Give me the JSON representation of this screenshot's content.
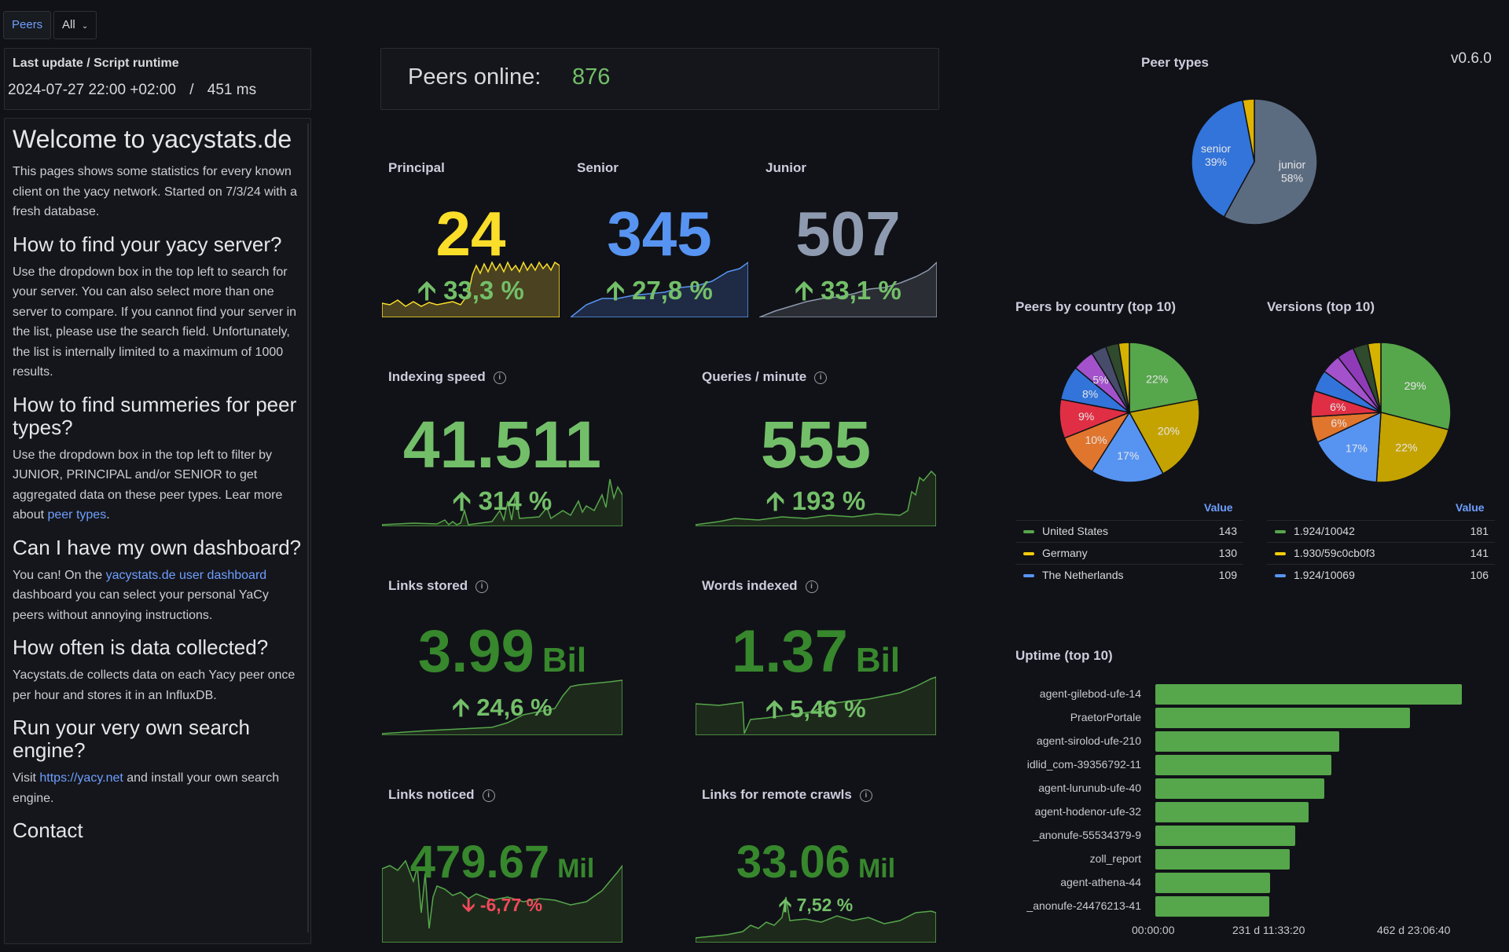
{
  "topbar": {
    "peers_label": "Peers",
    "all_label": "All",
    "version": "v0.6.0"
  },
  "update": {
    "title": "Last update / Script runtime",
    "datetime": "2024-07-27 22:00 +02:00",
    "sep": "/",
    "runtime": "451 ms"
  },
  "welcome": {
    "title": "Welcome to yacystats.de",
    "intro": "This pages shows some statistics for every known client on the yacy network. Started on 7/3/24 with a fresh database.",
    "h_find_server": "How to find your yacy server?",
    "p_find_server": "Use the dropdown box in the top left to search for your server. You can also select more than one server to compare. If you cannot find your server in the list, please use the search field. Unfortunately, the list is internally limited to a maximum of 1000 results.",
    "h_summaries": "How to find summeries for peer types?",
    "p_summaries_pre": "Use the dropdown box in the top left to filter by JUNIOR, PRINCIPAL and/or SENIOR to get aggregated data on these peer types. Lear more about ",
    "p_summaries_link": "peer types",
    "p_summaries_post": ".",
    "h_own_dash": "Can I have my own dashboard?",
    "p_own_dash_pre": "You can! On the ",
    "p_own_dash_link": "yacystats.de user dashboard",
    "p_own_dash_post": " dashboard you can select your personal YaCy peers without annoying instructions.",
    "h_collected": "How often is data collected?",
    "p_collected": "Yacystats.de collects data on each Yacy peer once per hour and stores it in an InfluxDB.",
    "h_search_engine": "Run your very own search engine?",
    "p_search_pre": "Visit ",
    "p_search_link": "https://yacy.net",
    "p_search_post": " and install your own search engine.",
    "h_contact": "Contact"
  },
  "peers_online": {
    "label": "Peers online:",
    "value": "876"
  },
  "types": {
    "principal": {
      "title": "Principal",
      "value": "24",
      "delta": "33,3 %",
      "color": "#fade2a"
    },
    "senior": {
      "title": "Senior",
      "value": "345",
      "delta": "27,8 %",
      "color": "#5794f2"
    },
    "junior": {
      "title": "Junior",
      "value": "507",
      "delta": "33,1 %",
      "color": "#8e9aaf"
    }
  },
  "stats": {
    "indexing": {
      "title": "Indexing speed",
      "value": "41.511",
      "unit": "",
      "delta": "314 %",
      "dir": "up"
    },
    "queries": {
      "title": "Queries / minute",
      "value": "555",
      "unit": "",
      "delta": "193 %",
      "dir": "up"
    },
    "links_stored": {
      "title": "Links stored",
      "value": "3.99",
      "unit": "Bil",
      "delta": "24,6 %",
      "dir": "up"
    },
    "words_indexed": {
      "title": "Words indexed",
      "value": "1.37",
      "unit": "Bil",
      "delta": "5,46 %",
      "dir": "up"
    },
    "links_noticed": {
      "title": "Links noticed",
      "value": "479.67",
      "unit": "Mil",
      "delta": "-6,77 %",
      "dir": "down"
    },
    "remote_crawls": {
      "title": "Links for remote crawls",
      "value": "33.06",
      "unit": "Mil",
      "delta": "7,52 %",
      "dir": "up"
    }
  },
  "peer_types_pie": {
    "title": "Peer types",
    "slices": [
      {
        "name": "junior",
        "label": "junior",
        "pct_label": "58%",
        "value": 58,
        "color": "#5c6c80"
      },
      {
        "name": "senior",
        "label": "senior",
        "pct_label": "39%",
        "value": 39,
        "color": "#3274d9"
      },
      {
        "name": "principal",
        "label": "",
        "pct_label": "",
        "value": 3,
        "color": "#e0b400"
      }
    ]
  },
  "country_pie": {
    "title": "Peers by country (top 10)",
    "value_header": "Value",
    "slices": [
      {
        "label": "22%",
        "value": 22,
        "color": "#56a64b"
      },
      {
        "label": "20%",
        "value": 20,
        "color": "#c4a300"
      },
      {
        "label": "17%",
        "value": 17,
        "color": "#5794f2"
      },
      {
        "label": "10%",
        "value": 10,
        "color": "#e0752d"
      },
      {
        "label": "9%",
        "value": 9,
        "color": "#e02f44"
      },
      {
        "label": "8%",
        "value": 8,
        "color": "#3274d9"
      },
      {
        "label": "5%",
        "value": 5,
        "color": "#a352cc"
      },
      {
        "label": "",
        "value": 3.5,
        "color": "#464c6a"
      },
      {
        "label": "",
        "value": 3,
        "color": "#2f4a2c"
      },
      {
        "label": "",
        "value": 2.5,
        "color": "#d6b300"
      }
    ],
    "legend": [
      {
        "name": "United States",
        "value": "143",
        "color": "#56a64b"
      },
      {
        "name": "Germany",
        "value": "130",
        "color": "#f2cc0c"
      },
      {
        "name": "The Netherlands",
        "value": "109",
        "color": "#5794f2"
      }
    ]
  },
  "versions_pie": {
    "title": "Versions (top 10)",
    "value_header": "Value",
    "slices": [
      {
        "label": "29%",
        "value": 29,
        "color": "#56a64b"
      },
      {
        "label": "22%",
        "value": 22,
        "color": "#c4a300"
      },
      {
        "label": "17%",
        "value": 17,
        "color": "#5794f2"
      },
      {
        "label": "6%",
        "value": 6,
        "color": "#e0752d"
      },
      {
        "label": "6%",
        "value": 6,
        "color": "#e02f44"
      },
      {
        "label": "",
        "value": 5,
        "color": "#3274d9"
      },
      {
        "label": "",
        "value": 4.5,
        "color": "#a352cc"
      },
      {
        "label": "",
        "value": 4,
        "color": "#8f3bb8"
      },
      {
        "label": "",
        "value": 3.5,
        "color": "#2f4a2c"
      },
      {
        "label": "",
        "value": 3,
        "color": "#d6b300"
      }
    ],
    "legend": [
      {
        "name": "1.924/10042",
        "value": "181",
        "color": "#56a64b"
      },
      {
        "name": "1.930/59c0cb0f3",
        "value": "141",
        "color": "#f2cc0c"
      },
      {
        "name": "1.924/10069",
        "value": "106",
        "color": "#5794f2"
      }
    ]
  },
  "uptime": {
    "title": "Uptime (top 10)",
    "max_days": 520,
    "bars": [
      {
        "name": "agent-gilebod-ufe-14",
        "days": 520
      },
      {
        "name": "PraetorPortale",
        "days": 432
      },
      {
        "name": "agent-sirolod-ufe-210",
        "days": 312
      },
      {
        "name": "idlid_com-39356792-11",
        "days": 298
      },
      {
        "name": "agent-lurunub-ufe-40",
        "days": 287
      },
      {
        "name": "agent-hodenor-ufe-32",
        "days": 260
      },
      {
        "name": "_anonufe-55534379-9",
        "days": 237
      },
      {
        "name": "zoll_report",
        "days": 228
      },
      {
        "name": "agent-athena-44",
        "days": 195
      },
      {
        "name": "_anonufe-24476213-41",
        "days": 193
      }
    ],
    "ticks": [
      "00:00:00",
      "231 d 11:33:20",
      "462 d 23:06:40"
    ]
  }
}
